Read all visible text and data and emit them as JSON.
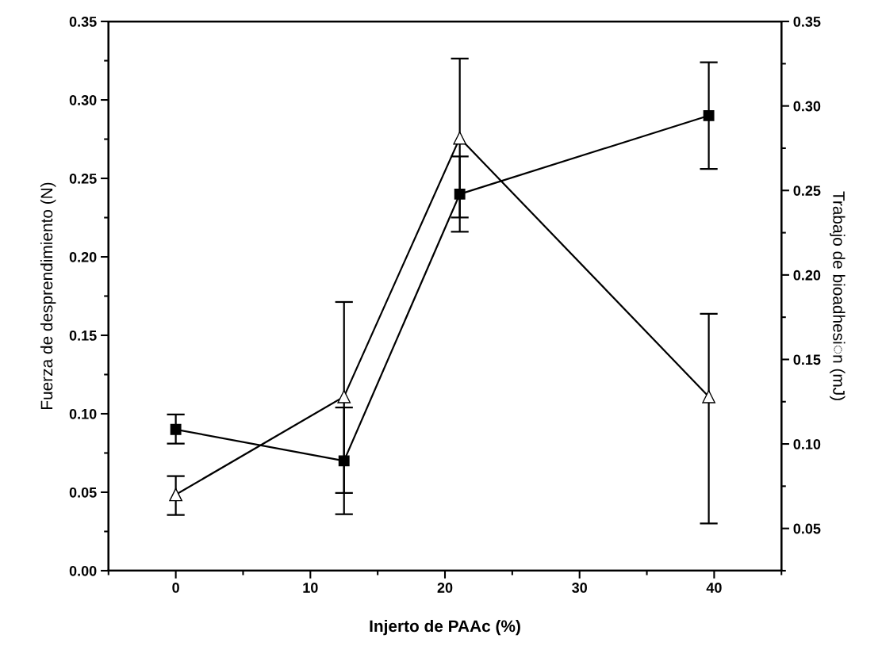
{
  "chart_data": {
    "type": "line",
    "xlabel": "Injerto de PAAc (%)",
    "ylabel": "Fuerza de desprendimiento (N)",
    "y2label": "Trabajo de bioadhesi◌n (mJ)",
    "x": [
      0,
      12.5,
      21.1,
      39.6
    ],
    "series": [
      {
        "color": "#000000",
        "marker": "square",
        "values": [
          0.09,
          0.07,
          0.24,
          0.29
        ],
        "errors": [
          [
            0.081,
            0.0996
          ],
          [
            0.036,
            0.104
          ],
          [
            0.216,
            0.264
          ],
          [
            0.256,
            0.324
          ]
        ]
      },
      {
        "color": "#000000",
        "marker": "triangle",
        "axis": "y2",
        "values": [
          0.07,
          0.128,
          0.281,
          0.128
        ],
        "errors": [
          [
            0.058,
            0.081
          ],
          [
            0.071,
            0.184
          ],
          [
            0.234,
            0.328
          ],
          [
            0.053,
            0.177
          ]
        ]
      }
    ],
    "xlim": [
      -5,
      45
    ],
    "xticks": [
      0,
      10,
      20,
      30,
      40
    ],
    "ylim": [
      0,
      0.35
    ],
    "yticks": [
      {
        "value": 0,
        "label": "0.00"
      },
      {
        "value": 0.05,
        "label": "0.05"
      },
      {
        "value": 0.1,
        "label": "0.10"
      },
      {
        "value": 0.15,
        "label": "0.15"
      },
      {
        "value": 0.2,
        "label": "0.20"
      },
      {
        "value": 0.25,
        "label": "0.25"
      },
      {
        "value": 0.3,
        "label": "0.30"
      },
      {
        "value": 0.35,
        "label": "0.35"
      }
    ],
    "y2lim": [
      0.026,
      0.35
    ],
    "y2ticks": [
      {
        "value": 0.05,
        "label": "0.05"
      },
      {
        "value": 0.1,
        "label": "0.10"
      },
      {
        "value": 0.15,
        "label": "0.15"
      },
      {
        "value": 0.2,
        "label": "0.20"
      },
      {
        "value": 0.25,
        "label": "0.25"
      },
      {
        "value": 0.3,
        "label": "0.30"
      },
      {
        "value": 0.35,
        "label": "0.35"
      }
    ],
    "line_style": "solid",
    "grid": false,
    "legend": false
  }
}
